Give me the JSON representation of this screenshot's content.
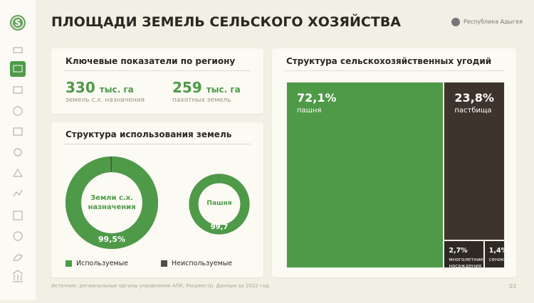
{
  "sidebar": {
    "logo": "S"
  },
  "header": {
    "title": "ПЛОЩАДИ ЗЕМЕЛЬ СЕЛЬСКОГО ХОЗЯЙСТВА",
    "region": "Республика Адыгея"
  },
  "kpi_panel": {
    "title": "Ключевые показатели по региону",
    "items": [
      {
        "value": 330,
        "unit": "тыс. га",
        "label": "земель с.х. назначения"
      },
      {
        "value": 259,
        "unit": "тыс. га",
        "label": "пахотных земель"
      }
    ]
  },
  "chart_data": [
    {
      "type": "donut",
      "title": "Структура использования земель",
      "legend": [
        {
          "name": "Используемые",
          "color": "#4e9a48"
        },
        {
          "name": "Неиспользуемые",
          "color": "#4f4b45"
        }
      ],
      "donuts": [
        {
          "label": "Земли с.х. назначения",
          "value": 99.5,
          "value_label": "99,5%"
        },
        {
          "label": "Пашня",
          "value": 99.7,
          "value_label": "99,7"
        }
      ]
    },
    {
      "type": "treemap",
      "title": "Структура сельскохозяйственных угодий",
      "items": [
        {
          "name": "пашня",
          "value": 72.1,
          "value_label": "72,1%",
          "color": "#4e9a48"
        },
        {
          "name": "пастбища",
          "value": 23.8,
          "value_label": "23,8%",
          "color": "#3d342d"
        },
        {
          "name": "многолетние насаждения",
          "value": 2.7,
          "value_label": "2,7%",
          "color": "#2f2924"
        },
        {
          "name": "сенокосы",
          "value": 1.4,
          "value_label": "1,4%",
          "color": "#2f2924"
        }
      ]
    }
  ],
  "footer": {
    "source": "Источник: региональные органы управления АПК, Росреестр. Данные за 2022 год.",
    "page": "03"
  }
}
